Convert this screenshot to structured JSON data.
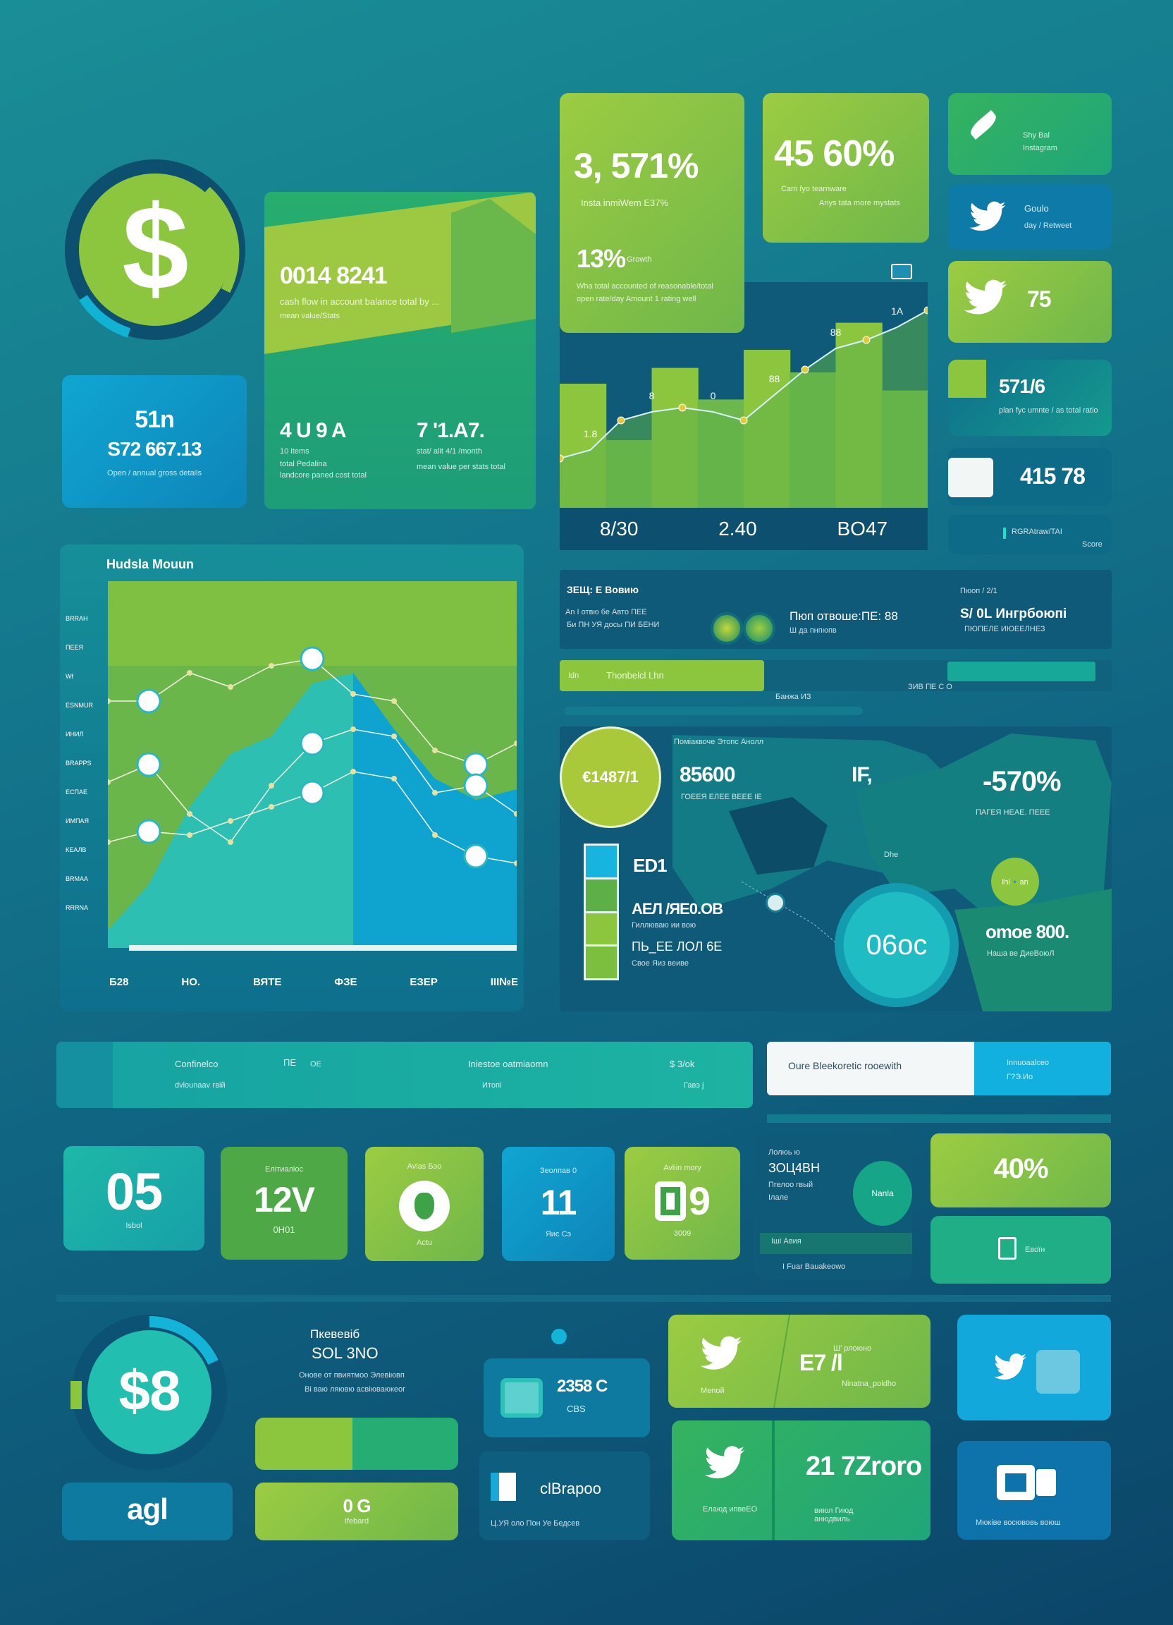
{
  "colors": {
    "lime": "#8cc63f",
    "green": "#2eaa6a",
    "teal": "#1eb8a8",
    "blue": "#0f9ac8",
    "navy": "#0d4f6e",
    "white": "#ffffff"
  },
  "hero": {
    "icon": "dollar-icon",
    "total": "0014 8241",
    "total_caption": "cash flow in account balance total by ...",
    "total_sub": "mean value/Stats",
    "stat_a": "4 U 9 A",
    "stat_a_caption": "10 items",
    "stat_a_sub": "total Pedalina",
    "stat_a_sub2": "landcore  paned cost total",
    "stat_b": "7 '1.A7.",
    "stat_b_caption": "stat/ alit 4/1 /month",
    "stat_b_sub": "mean value per stats total"
  },
  "balance": {
    "value": "51n",
    "amount": "S72 667.13",
    "caption": "Open / annual gross details"
  },
  "kpi_growth": {
    "value": "3, 571%",
    "caption": "Insta inmiWem E37%",
    "sub_value": "13%",
    "sub_label": "Growth",
    "desc1": "Wha total accounted of reasonable/total",
    "desc2": "open rate/day Amount 1 rating well"
  },
  "kpi_revenue": {
    "value": "45 60%",
    "caption": "Cam fyo tearnware",
    "sub": "Anys tata more mystats"
  },
  "social": [
    {
      "icon": "leaf-icon",
      "title": "Shy Bal",
      "sub": "Instagram"
    },
    {
      "icon": "twitter-icon",
      "title": "Goulo",
      "sub": "day / Retweet"
    },
    {
      "icon": "twitter-icon",
      "title": "75",
      "sub": ""
    },
    {
      "icon": "square-icon",
      "title": "571/6",
      "sub": "plan fyc umnte / as total ratio"
    },
    {
      "icon": "square-icon",
      "title": "415 78",
      "sub": ""
    },
    {
      "icon": "bar-icon",
      "title": "RGRAtraw/TAI",
      "sub": "Score"
    }
  ],
  "trend_chart": {
    "type": "area",
    "x_labels": [
      "8/30",
      "2.40",
      "BO47"
    ],
    "line_values": [
      20,
      24,
      38,
      42,
      44,
      42,
      38,
      50,
      62,
      72,
      76,
      82,
      90
    ],
    "point_labels": [
      "1.8",
      "8",
      "0",
      "88",
      "88",
      "1A"
    ],
    "bars": [
      55,
      30,
      62,
      48,
      70,
      60,
      82,
      52
    ]
  },
  "main_chart": {
    "type": "line",
    "title": "Hudsla Mouun",
    "x_labels": [
      "Б28",
      "HO.",
      "ВЯТЕ",
      "ФЗЕ",
      "ЕЗЕР",
      "ІІІ№Е"
    ],
    "y_labels": [
      "BRRAH",
      "ПЕЕЯ",
      "Wf",
      "ESNMUR",
      "ИНИЛ",
      "BRAPPS",
      "ЕСПАЕ",
      "ИМПАЯ",
      "КЕАЛВ",
      "BRMAA",
      "RRRNA"
    ],
    "series_a": [
      70,
      70,
      78,
      74,
      80,
      82,
      72,
      70,
      56,
      52,
      58
    ],
    "series_b": [
      47,
      52,
      38,
      30,
      46,
      58,
      62,
      60,
      44,
      46,
      38
    ],
    "series_c": [
      30,
      33,
      32,
      36,
      40,
      44,
      50,
      48,
      32,
      26,
      24
    ],
    "area": [
      5,
      18,
      40,
      55,
      60,
      75,
      78,
      62,
      48,
      42,
      45
    ]
  },
  "info_strip": {
    "title": "ЗЕЩ: Е Bовию",
    "desc1": "An I отвю бе Авто ПЕЕ",
    "desc2": "Би ПН УЯ досы ПИ БЕНИ",
    "metric": "Пюп отвоше:ПЕ: 88",
    "metric_sub": "Ш да пнпюпв",
    "right_title": "Пюоп / 2/1",
    "right_value": "S/ 0L Ингрбоюпі",
    "right_sub": "ПЮПЕЛЕ ИЮЕЕЛНЕЗ"
  },
  "progress": {
    "label": "Thonbelcl Lhn",
    "prefix": "Idn",
    "caption": "Банжа ИЗ",
    "right": "ЗИВ ПЕ С О",
    "fraction": 0.37
  },
  "map_panel": {
    "circle_value": "€1487/1",
    "header": "Поміаквоче Этопс Анолл",
    "value_a": "85600",
    "value_a_caption": "ГОЕЕЯ ЕЛЕЕ ВЕЕЕ ІЕ",
    "value_b": "IF,",
    "value_c": "-570%",
    "value_c_caption": "ПАГЕЯ НЕАЕ. ПЕЕЕ",
    "row1": "ED1",
    "row2": "АЕЛ /ЯЕ0.ОВ",
    "row2_caption": "Гиллюваю ии вою",
    "row3": "ПЬ_ЕЕ ЛОЛ 6Е",
    "row3_caption": "Свое Яиз веиве",
    "big_circle": "06oc",
    "right_badge": "Ihl🔹an",
    "right_value": "omoe 800.",
    "right_caption": "Наша ве ДиеВоюЛ",
    "city": "Dhe"
  },
  "summary_row": {
    "label1": "Confinelco",
    "sub1": "dvlounaav гвій",
    "tag": "ПЕ",
    "tag2": "ОЕ",
    "label2": "Iniestoe oatmiaomn",
    "sub2": "Итопі",
    "label3": "$ 3/ok",
    "sub3": "Гавэ ј",
    "search_text": "Oure Bleekoretic rooewith",
    "right_label": "Innuoaalceo",
    "right_sub": "Г?Э.Ио"
  },
  "tiles": [
    {
      "value": "05",
      "label": "Isbol",
      "title": ""
    },
    {
      "value": "12V",
      "label": "0H01",
      "title": "Елітиаліос"
    },
    {
      "value": "",
      "label": "Actu",
      "title": "Avlas Бэо",
      "icon": "location-icon"
    },
    {
      "value": "11",
      "label": "Яиє Сэ",
      "title": "Зеолпав 0"
    },
    {
      "value": "9",
      "label": "3009",
      "title": "Avliin mory",
      "icon": "badge-icon"
    }
  ],
  "side_panel": {
    "title": "Лолюь ю",
    "value": "ЗОЦ4ВН",
    "sub1": "Пгелоо гвый",
    "sub2": "Ілале",
    "circle_label": "Nanla",
    "bar_label": "Іші Авия",
    "footer": "I Fuar Bauakeowo"
  },
  "side_kpis": {
    "percent": "40%",
    "doc_label": "Eвоїн",
    "doc_icon": "document-icon"
  },
  "bottom": {
    "circle_value": "$8",
    "ring_fraction": 0.18,
    "label": "agl",
    "title": "Пкевевіб",
    "subtitle": "SOL 3NO",
    "desc1": "Онове от пвиятмоо Элевіювп",
    "desc2": "Ві ваю ляювю асвіюваюкеог",
    "small_box_value": "0 G",
    "small_box_label": "Ifebard",
    "wallet_value": "2358 C",
    "wallet_sub": "CBS",
    "wallet_icon": "wallet-icon",
    "clip_value": "clBrapoo",
    "clip_caption": "Ц.УЯ оло Пон Уе Бедсев",
    "clip_icon": "clipboard-icon",
    "tw1_label": "Мепой",
    "tw1_value": "E7 /l",
    "tw1_top": "Ш' рлоюно",
    "tw1_sub": "Ninatna_poldho",
    "tw2_label": "Елаюд ипвеЕО",
    "tw2_value": "21 7Zroro",
    "tw2_sub": "виюл Гиюд анюдвиль",
    "blue1_icon": "twitter-icon",
    "blue2_icon": "camera-icon",
    "blue2_caption": "Мюківе восювовь воюш"
  }
}
